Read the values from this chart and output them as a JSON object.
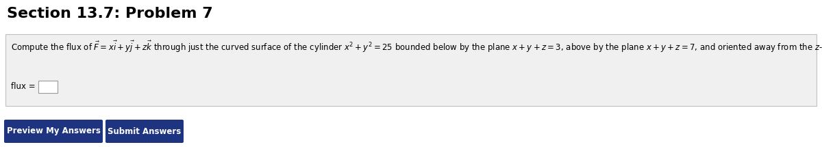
{
  "title": "Section 13.7: Problem 7",
  "title_fontsize": 16,
  "title_fontweight": "bold",
  "title_color": "#000000",
  "problem_text": "Compute the flux of $\\vec{F} = x\\vec{i} + y\\vec{j} + z\\vec{k}$ through just the curved surface of the cylinder $x^2 + y^2 = 25$ bounded below by the plane $x + y + z = 3$, above by the plane $x + y + z = 7$, and oriented away from the $z$-axis.",
  "flux_label": "flux =",
  "box_bg": "#f0f0f0",
  "box_edge": "#c0c0c0",
  "input_box_color": "#ffffff",
  "input_box_edge": "#999999",
  "btn1_label": "Preview My Answers",
  "btn2_label": "Submit Answers",
  "btn_bg": "#1f3480",
  "btn_text_color": "#ffffff",
  "btn_fontsize": 8.5,
  "problem_fontsize": 8.5,
  "flux_fontsize": 8.5,
  "bg_color": "#ffffff"
}
